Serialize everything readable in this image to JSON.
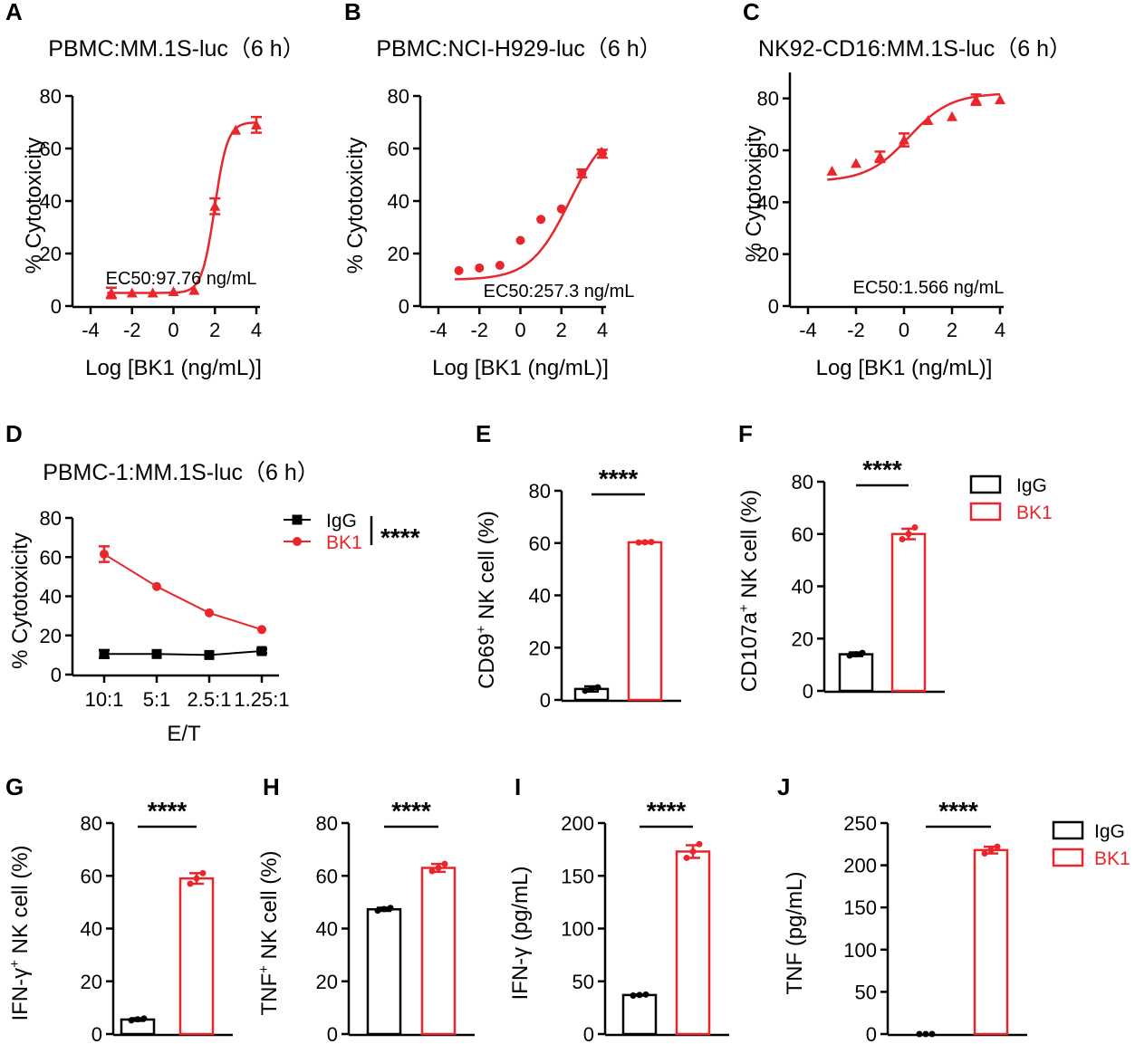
{
  "colors": {
    "bk1": "#e8262b",
    "igg": "#000000"
  },
  "panel_letters": [
    "A",
    "B",
    "C",
    "D",
    "E",
    "F",
    "G",
    "H",
    "I",
    "J"
  ],
  "legend": {
    "igg": "IgG",
    "bk1": "BK1"
  },
  "chart_data": [
    {
      "id": "A",
      "type": "scatter-fit",
      "title": "PBMC:MM.1S-luc（6 h）",
      "xlabel": "Log [BK1 (ng/mL)]",
      "ylabel": "% Cytotoxicity",
      "xlim": [
        -4,
        4
      ],
      "ylim": [
        0,
        80
      ],
      "xticks": [
        -4,
        -2,
        0,
        2,
        4
      ],
      "yticks": [
        0,
        20,
        40,
        60,
        80
      ],
      "marker": "triangle",
      "points": [
        {
          "x": -3,
          "y": 5,
          "err": 2
        },
        {
          "x": -2,
          "y": 5,
          "err": 0
        },
        {
          "x": -1,
          "y": 5,
          "err": 0
        },
        {
          "x": 0,
          "y": 5.5,
          "err": 0
        },
        {
          "x": 1,
          "y": 6,
          "err": 0
        },
        {
          "x": 2,
          "y": 38,
          "err": 3
        },
        {
          "x": 3,
          "y": 67,
          "err": 0
        },
        {
          "x": 4,
          "y": 69,
          "err": 3
        }
      ],
      "fit": {
        "bottom": 5,
        "top": 70,
        "logec50": 1.99,
        "hill": 1.4
      },
      "annotation": "EC50:97.76 ng/mL"
    },
    {
      "id": "B",
      "type": "scatter-fit",
      "title": "PBMC:NCI-H929-luc（6 h）",
      "xlabel": "Log [BK1 (ng/mL)]",
      "ylabel": "% Cytotoxicity",
      "xlim": [
        -4,
        4
      ],
      "ylim": [
        0,
        80
      ],
      "xticks": [
        -4,
        -2,
        0,
        2,
        4
      ],
      "yticks": [
        0,
        20,
        40,
        60,
        80
      ],
      "marker": "circle",
      "points": [
        {
          "x": -3,
          "y": 13.5,
          "err": 0
        },
        {
          "x": -2,
          "y": 14.5,
          "err": 0
        },
        {
          "x": -1,
          "y": 15.5,
          "err": 0
        },
        {
          "x": 0,
          "y": 25,
          "err": 0
        },
        {
          "x": 1,
          "y": 33,
          "err": 0
        },
        {
          "x": 2,
          "y": 37,
          "err": 0
        },
        {
          "x": 3,
          "y": 50.5,
          "err": 1.5
        },
        {
          "x": 4,
          "y": 58,
          "err": 1.5
        }
      ],
      "fit": {
        "bottom": 10,
        "top": 70,
        "logec50": 2.41,
        "hill": 0.45
      },
      "annotation": "EC50:257.3 ng/mL"
    },
    {
      "id": "C",
      "type": "scatter-fit",
      "title": "NK92-CD16:MM.1S-luc（6 h）",
      "xlabel": "Log [BK1 (ng/mL)]",
      "ylabel": "% Cytotoxicity",
      "xlim": [
        -4,
        4
      ],
      "ylim": [
        0,
        90
      ],
      "xticks": [
        -4,
        -2,
        0,
        2,
        4
      ],
      "yticks": [
        0,
        20,
        40,
        60,
        80
      ],
      "marker": "triangle",
      "points": [
        {
          "x": -3,
          "y": 52,
          "err": 0
        },
        {
          "x": -2,
          "y": 55,
          "err": 0
        },
        {
          "x": -1,
          "y": 57.5,
          "err": 2
        },
        {
          "x": 0,
          "y": 64,
          "err": 2.5
        },
        {
          "x": 1,
          "y": 71.5,
          "err": 0
        },
        {
          "x": 2,
          "y": 73,
          "err": 0
        },
        {
          "x": 3,
          "y": 79.5,
          "err": 2
        },
        {
          "x": 4,
          "y": 79.5,
          "err": 0
        }
      ],
      "fit": {
        "bottom": 48,
        "top": 82,
        "logec50": 0.195,
        "hill": 0.5
      },
      "annotation": "EC50:1.566 ng/mL"
    },
    {
      "id": "D",
      "type": "line",
      "title": "PBMC-1:MM.1S-luc（6 h）",
      "xlabel": "E/T",
      "ylabel": "% Cytotoxicity",
      "categories": [
        "10:1",
        "5:1",
        "2.5:1",
        "1.25:1"
      ],
      "ylim": [
        0,
        80
      ],
      "yticks": [
        0,
        20,
        40,
        60,
        80
      ],
      "series": [
        {
          "name": "IgG",
          "values": [
            10.5,
            10.5,
            10,
            12
          ],
          "errors": [
            2,
            0,
            0,
            1
          ]
        },
        {
          "name": "BK1",
          "values": [
            61.5,
            45,
            31.5,
            23
          ],
          "errors": [
            4,
            0,
            0,
            0
          ]
        }
      ],
      "significance": "****"
    },
    {
      "id": "E",
      "type": "bar",
      "ylabel_main": "CD69",
      "ylabel_sup": "+",
      "ylabel_rest": " NK cell (%)",
      "categories": [
        "IgG",
        "BK1"
      ],
      "values": [
        4.2,
        60.3
      ],
      "errors": [
        1,
        0.3
      ],
      "points": [
        [
          3.5,
          4.3,
          4.8
        ],
        [
          60.2,
          60.3,
          60.4
        ]
      ],
      "ylim": [
        0,
        80
      ],
      "yticks": [
        0,
        20,
        40,
        60,
        80
      ],
      "significance": "****"
    },
    {
      "id": "F",
      "type": "bar",
      "ylabel_main": "CD107a",
      "ylabel_sup": "+",
      "ylabel_rest": " NK cell (%)",
      "categories": [
        "IgG",
        "BK1"
      ],
      "values": [
        14,
        60
      ],
      "errors": [
        0.7,
        2
      ],
      "points": [
        [
          13.5,
          14,
          14.5
        ],
        [
          58,
          60,
          62.5
        ]
      ],
      "ylim": [
        0,
        80
      ],
      "yticks": [
        0,
        20,
        40,
        60,
        80
      ],
      "significance": "****"
    },
    {
      "id": "G",
      "type": "bar",
      "ylabel_main": "IFN-γ",
      "ylabel_sup": "+",
      "ylabel_rest": " NK cell (%)",
      "categories": [
        "IgG",
        "BK1"
      ],
      "values": [
        5.5,
        59
      ],
      "errors": [
        0.5,
        2
      ],
      "points": [
        [
          5.2,
          5.6,
          5.9
        ],
        [
          57,
          59,
          61
        ]
      ],
      "ylim": [
        0,
        80
      ],
      "yticks": [
        0,
        20,
        40,
        60,
        80
      ],
      "significance": "****"
    },
    {
      "id": "H",
      "type": "bar",
      "ylabel_main": "TNF",
      "ylabel_sup": "+",
      "ylabel_rest": " NK cell (%)",
      "categories": [
        "IgG",
        "BK1"
      ],
      "values": [
        47.3,
        63
      ],
      "errors": [
        0.6,
        1.5
      ],
      "points": [
        [
          46.8,
          47.4,
          47.8
        ],
        [
          61.8,
          63,
          64.5
        ]
      ],
      "ylim": [
        0,
        80
      ],
      "yticks": [
        0,
        20,
        40,
        60,
        80
      ],
      "significance": "****"
    },
    {
      "id": "I",
      "type": "bar",
      "ylabel_main": "IFN-γ (pg/mL)",
      "ylabel_sup": "",
      "ylabel_rest": "",
      "categories": [
        "IgG",
        "BK1"
      ],
      "values": [
        37,
        173
      ],
      "errors": [
        0.5,
        6
      ],
      "points": [
        [
          36.5,
          37,
          37.5
        ],
        [
          167,
          173,
          180
        ]
      ],
      "ylim": [
        0,
        200
      ],
      "yticks": [
        0,
        50,
        100,
        150,
        200
      ],
      "significance": "****"
    },
    {
      "id": "J",
      "type": "bar",
      "ylabel_main": "TNF (pg/mL)",
      "ylabel_sup": "",
      "ylabel_rest": "",
      "categories": [
        "IgG",
        "BK1"
      ],
      "values": [
        0,
        218
      ],
      "errors": [
        0,
        4
      ],
      "points": [
        [
          0,
          0,
          0
        ],
        [
          214,
          218,
          222
        ]
      ],
      "ylim": [
        0,
        250
      ],
      "yticks": [
        0,
        50,
        100,
        150,
        200,
        250
      ],
      "significance": "****"
    }
  ]
}
